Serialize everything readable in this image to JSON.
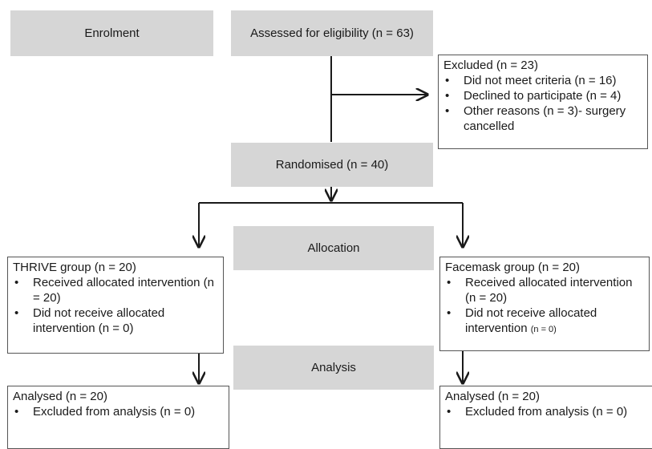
{
  "phases": {
    "enrolment": "Enrolment",
    "allocation": "Allocation",
    "analysis": "Analysis"
  },
  "assessed": "Assessed for eligibility (n = 63)",
  "excluded": {
    "title": "Excluded (n = 23)",
    "items": [
      "Did not meet criteria (n = 16)",
      "Declined to participate (n = 4)",
      "Other reasons (n = 3)- surgery cancelled"
    ]
  },
  "randomised": "Randomised (n = 40)",
  "thrive": {
    "title": "THRIVE group (n = 20)",
    "items": [
      "Received allocated intervention (n = 20)",
      "Did not receive allocated intervention (n = 0)"
    ]
  },
  "facemask": {
    "title": "Facemask group (n = 20)",
    "items": [
      "Received allocated intervention (n = 20)",
      "Did not receive allocated intervention"
    ],
    "small_count": "(n = 0)"
  },
  "analysis_left": {
    "title": "Analysed (n = 20)",
    "items": [
      "Excluded from analysis (n = 0)"
    ]
  },
  "analysis_right": {
    "title": "Analysed (n = 20)",
    "items": [
      "Excluded from analysis (n = 0)"
    ]
  },
  "colors": {
    "phase_fill": "#d6d6d6",
    "box_border": "#555555",
    "line": "#1a1a1a"
  }
}
